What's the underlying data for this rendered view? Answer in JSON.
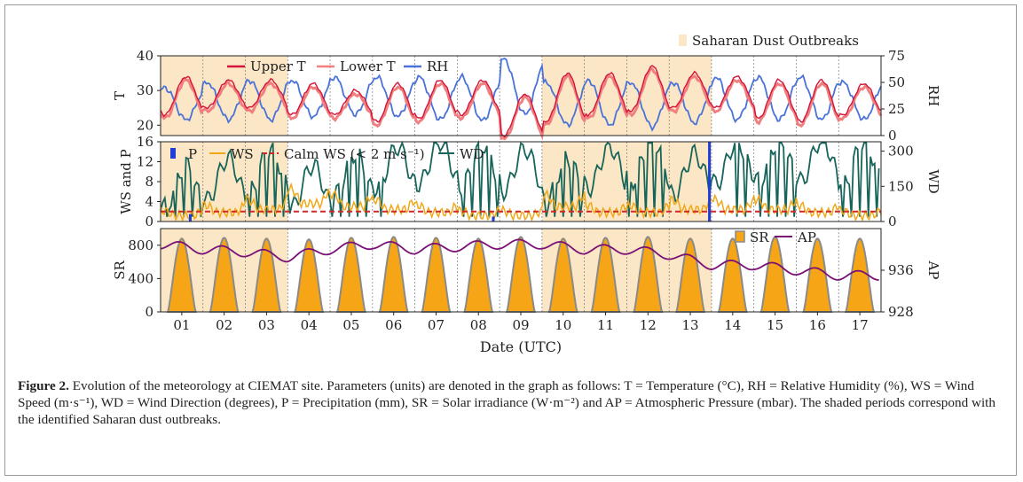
{
  "figure": {
    "caption_label": "Figure 2.",
    "caption_text": " Evolution of the meteorology at CIEMAT site. Parameters (units) are denoted in the graph as follows: T = Temperature (°C), RH = Relative Humidity (%), WS = Wind Speed (m·s⁻¹), WD = Wind Direction (degrees), P = Precipitation (mm), SR = Solar irradiance (W·m⁻²) and AP = Atmospheric Pressure (mbar). The shaded periods correspond with the identified Saharan dust outbreaks."
  },
  "colors": {
    "dust_shade": "#fbe7c6",
    "upper_t": "#d4143a",
    "lower_t": "#f08080",
    "rh": "#4a72d8",
    "precip": "#1f3fd8",
    "ws": "#f0a818",
    "calm_ws": "#d62728",
    "wd": "#17655a",
    "sr_fill": "#f5a515",
    "sr_edge": "#8a8a8a",
    "ap": "#7b1076"
  },
  "chart_data": {
    "type": "line",
    "xlabel": "Date (UTC)",
    "x_ticks": [
      "01",
      "02",
      "03",
      "04",
      "05",
      "06",
      "07",
      "08",
      "09",
      "10",
      "11",
      "12",
      "13",
      "14",
      "15",
      "16",
      "17"
    ],
    "x_range_days": [
      0.5,
      17.5
    ],
    "dust_outbreaks": [
      [
        0.5,
        3.5
      ],
      [
        9.5,
        13.5
      ]
    ],
    "dust_legend": "Saharan Dust Outbreaks",
    "panels": [
      {
        "ylabel": "T",
        "y2label": "RH",
        "ylim": [
          17,
          40
        ],
        "yticks": [
          "20",
          "30",
          "40"
        ],
        "y2lim": [
          0,
          75
        ],
        "y2ticks": [
          "0",
          "25",
          "50",
          "75"
        ],
        "series": [
          {
            "name": "Upper T",
            "axis": "left",
            "daily_min": [
              23,
              25,
              25,
              23,
              23,
              21,
              22,
              23,
              17,
              21,
              23,
              24,
              25,
              25,
              22,
              21,
              23
            ],
            "daily_max": [
              34,
              33,
              33,
              32,
              30,
              32,
              33,
              33,
              29,
              35,
              35,
              37,
              35,
              34,
              33,
              33,
              32
            ]
          },
          {
            "name": "Lower T",
            "axis": "left",
            "daily_min": [
              22,
              24,
              24,
              22,
              22,
              20,
              21,
              22,
              16,
              20,
              22,
              23,
              24,
              24,
              21,
              20,
              22
            ],
            "daily_max": [
              33,
              32,
              32,
              31,
              29,
              31,
              32,
              32,
              28,
              34,
              34,
              36,
              34,
              33,
              32,
              32,
              31
            ]
          },
          {
            "name": "RH",
            "axis": "right",
            "daily_min": [
              15,
              15,
              15,
              18,
              20,
              18,
              15,
              14,
              20,
              10,
              10,
              8,
              12,
              15,
              15,
              15,
              15
            ],
            "daily_max": [
              45,
              50,
              52,
              52,
              55,
              55,
              55,
              55,
              72,
              50,
              52,
              50,
              50,
              55,
              55,
              55,
              50
            ]
          }
        ]
      },
      {
        "ylabel": "WS and P",
        "y2label": "WD",
        "ylim": [
          0,
          16
        ],
        "yticks": [
          "0",
          "4",
          "8",
          "12",
          "16"
        ],
        "y2lim": [
          0,
          340
        ],
        "y2ticks": [
          "0",
          "150",
          "300"
        ],
        "calm_threshold": 2,
        "series": [
          {
            "name": "P",
            "axis": "left",
            "type": "bar",
            "x": [
              1.2,
              8.35,
              13.45
            ],
            "values": [
              1.5,
              1.0,
              16
            ]
          },
          {
            "name": "WS",
            "axis": "left",
            "daily_mean": [
              2,
              3,
              4,
              6,
              5,
              4,
              3,
              2,
              2,
              5,
              3,
              3,
              4,
              4,
              4,
              3,
              2
            ]
          },
          {
            "name": "Calm WS (< 2 m s⁻¹)",
            "axis": "left",
            "value": 2
          },
          {
            "name": "WD",
            "axis": "right",
            "daily_mean": [
              150,
              180,
              220,
              150,
              200,
              230,
              250,
              240,
              220,
              180,
              230,
              260,
              200,
              250,
              260,
              260,
              250
            ]
          }
        ]
      },
      {
        "ylabel": "SR",
        "y2label": "AP",
        "ylim": [
          0,
          1000
        ],
        "yticks": [
          "0",
          "400",
          "800"
        ],
        "y2lim": [
          928,
          944
        ],
        "y2ticks": [
          "928",
          "936"
        ],
        "series": [
          {
            "name": "SR",
            "axis": "left",
            "type": "area",
            "daily_peak": [
              880,
              890,
              880,
              870,
              890,
              900,
              890,
              880,
              900,
              880,
              890,
              900,
              880,
              880,
              900,
              880,
              880
            ]
          },
          {
            "name": "AP",
            "axis": "right",
            "daily_mean": [
              941,
              940,
              939.5,
              938.5,
              940,
              941,
              940,
              940.5,
              941,
              941,
              940,
              940,
              939,
              937,
              937,
              936,
              935
            ]
          }
        ]
      }
    ]
  }
}
